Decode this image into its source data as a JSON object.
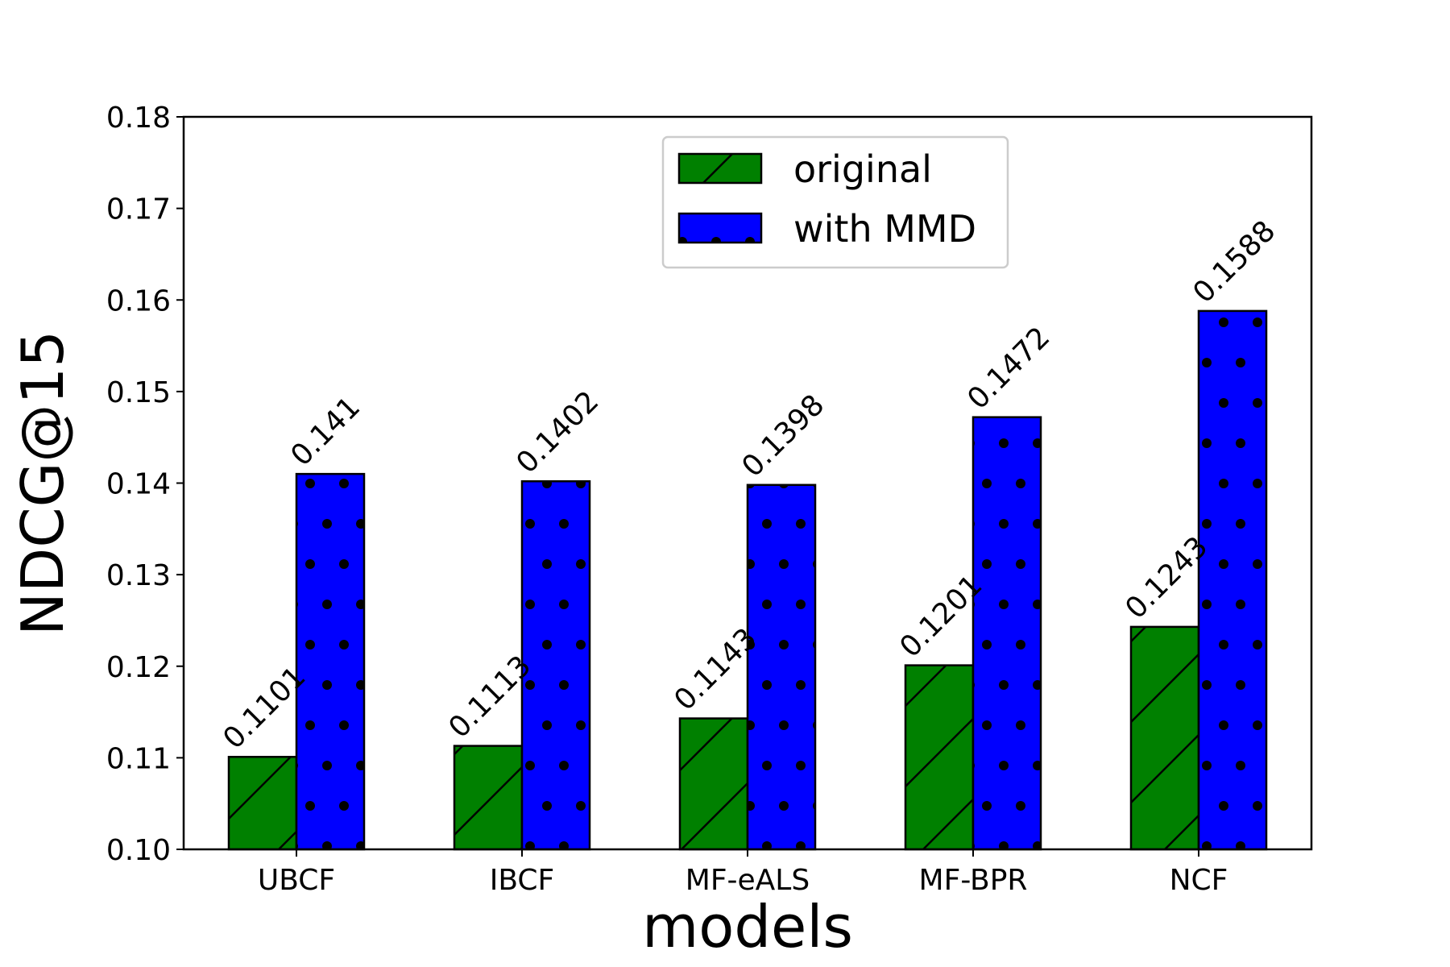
{
  "chart_data": {
    "type": "bar",
    "title": "",
    "xlabel": "models",
    "ylabel": "NDCG@15",
    "categories": [
      "UBCF",
      "IBCF",
      "MF-eALS",
      "MF-BPR",
      "NCF"
    ],
    "series": [
      {
        "name": "original",
        "values": [
          0.1101,
          0.1113,
          0.1143,
          0.1201,
          0.1243
        ],
        "value_labels": [
          "0.1101",
          "0.1113",
          "0.1143",
          "0.1201",
          "0.1243"
        ],
        "color": "#008000",
        "hatch": "diagonal"
      },
      {
        "name": "with MMD",
        "values": [
          0.141,
          0.1402,
          0.1398,
          0.1472,
          0.1588
        ],
        "value_labels": [
          "0.141",
          "0.1402",
          "0.1398",
          "0.1472",
          "0.1588"
        ],
        "color": "#0000ff",
        "hatch": "dots"
      }
    ],
    "ylim": [
      0.1,
      0.18
    ],
    "yticks": [
      "0.10",
      "0.11",
      "0.12",
      "0.13",
      "0.14",
      "0.15",
      "0.16",
      "0.17",
      "0.18"
    ],
    "grid": false,
    "legend_position": "top-center"
  }
}
